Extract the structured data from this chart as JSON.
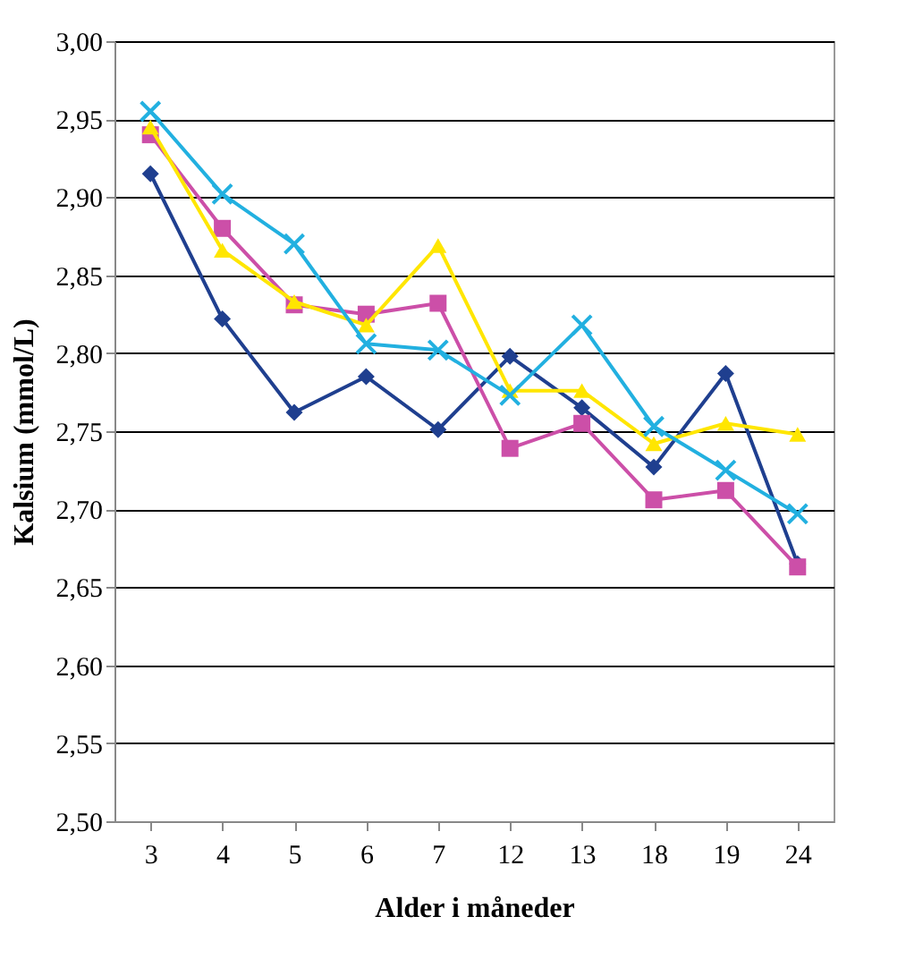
{
  "chart_data": {
    "type": "line",
    "xlabel": "Alder i måneder",
    "ylabel": "Kalsium  (mmol/L)",
    "categories": [
      "3",
      "4",
      "5",
      "6",
      "7",
      "12",
      "13",
      "18",
      "19",
      "24"
    ],
    "series": [
      {
        "color": "#1f3f8f",
        "marker": "diamond",
        "values": [
          2.915,
          2.822,
          2.762,
          2.785,
          2.751,
          2.798,
          2.765,
          2.727,
          2.787,
          2.665
        ]
      },
      {
        "color": "#cc4fa8",
        "marker": "square",
        "values": [
          2.94,
          2.88,
          2.831,
          2.825,
          2.832,
          2.739,
          2.755,
          2.706,
          2.712,
          2.663
        ]
      },
      {
        "color": "#ffe600",
        "marker": "triangle",
        "values": [
          2.945,
          2.866,
          2.833,
          2.818,
          2.869,
          2.776,
          2.776,
          2.742,
          2.755,
          2.748
        ]
      },
      {
        "color": "#22b0e0",
        "marker": "cross",
        "values": [
          2.955,
          2.902,
          2.87,
          2.806,
          2.802,
          2.773,
          2.818,
          2.753,
          2.725,
          2.697
        ]
      }
    ],
    "ylim": [
      2.5,
      3.0
    ],
    "yticks": [
      {
        "value": 2.5,
        "label": "2,50"
      },
      {
        "value": 2.55,
        "label": "2,55"
      },
      {
        "value": 2.6,
        "label": "2,60"
      },
      {
        "value": 2.65,
        "label": "2,65"
      },
      {
        "value": 2.7,
        "label": "2,70"
      },
      {
        "value": 2.75,
        "label": "2,75"
      },
      {
        "value": 2.8,
        "label": "2,80"
      },
      {
        "value": 2.85,
        "label": "2,85"
      },
      {
        "value": 2.9,
        "label": "2,90"
      },
      {
        "value": 2.95,
        "label": "2,95"
      },
      {
        "value": 3.0,
        "label": "3,00"
      }
    ],
    "grid": "y",
    "line_style": "solid"
  }
}
